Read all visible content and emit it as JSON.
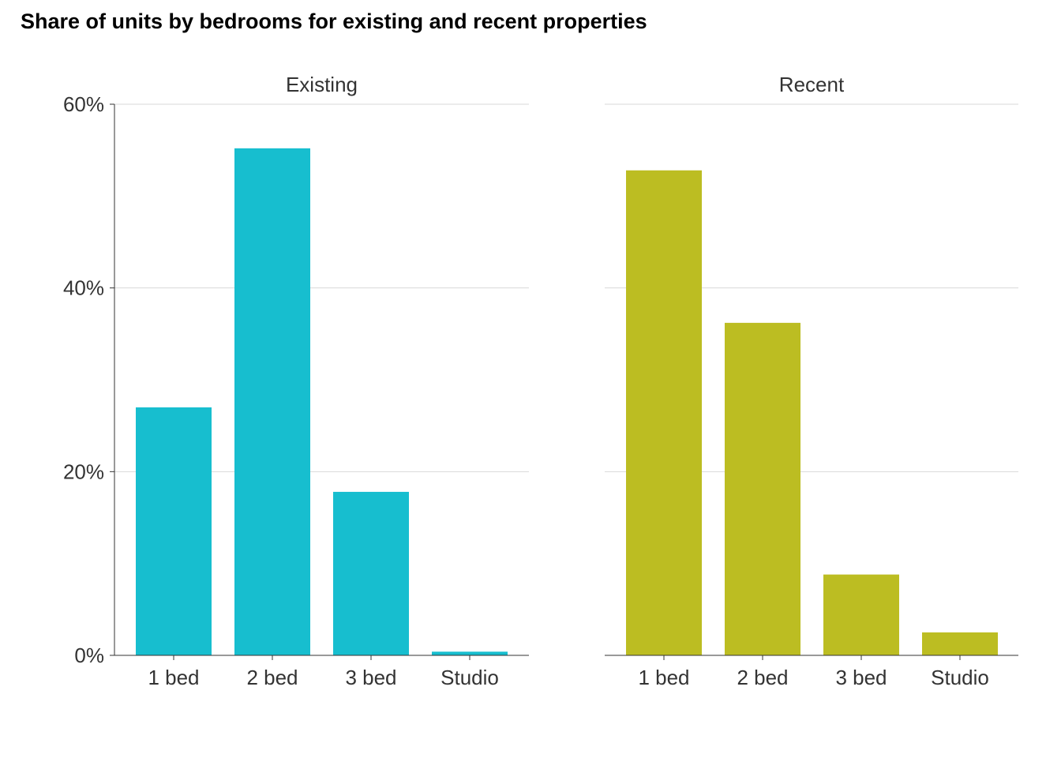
{
  "chart_data": {
    "type": "bar",
    "title": "Share of units by bedrooms for existing and recent properties",
    "xlabel": "",
    "ylabel": "",
    "ylim": [
      0,
      60
    ],
    "yticks": [
      0,
      20,
      40,
      60
    ],
    "ytick_labels": [
      "0%",
      "20%",
      "40%",
      "60%"
    ],
    "grid": true,
    "categories": [
      "1 bed",
      "2 bed",
      "3 bed",
      "Studio"
    ],
    "facets": [
      {
        "label": "Existing",
        "color": "#17BECF",
        "values": [
          27,
          55.2,
          17.8,
          0.4
        ]
      },
      {
        "label": "Recent",
        "color": "#BCBD22",
        "values": [
          52.8,
          36.2,
          8.8,
          2.5
        ]
      }
    ]
  }
}
